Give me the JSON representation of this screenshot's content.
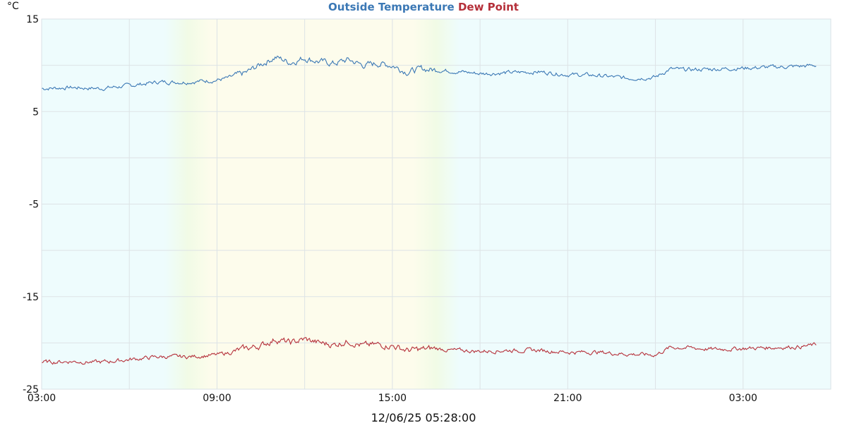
{
  "chart_data": {
    "type": "line",
    "title_parts": [
      {
        "text": "Outside Temperature",
        "color": "#3b78b5"
      },
      {
        "text": "Dew Point",
        "color": "#b5303a"
      }
    ],
    "unit_label": "°C",
    "footer": "12/06/25 05:28:00",
    "ylim": [
      -25,
      15
    ],
    "y_ticks": [
      {
        "value": 15,
        "label": "15"
      },
      {
        "value": 5,
        "label": "5"
      },
      {
        "value": -5,
        "label": "-5"
      },
      {
        "value": -15,
        "label": "-15"
      },
      {
        "value": -25,
        "label": "-25"
      }
    ],
    "y_grid_values": [
      15,
      10,
      5,
      0,
      -5,
      -10,
      -15,
      -20,
      -25
    ],
    "xlim": [
      0,
      27
    ],
    "x_ticks": [
      {
        "value": 0,
        "label": "03:00"
      },
      {
        "value": 6,
        "label": "09:00"
      },
      {
        "value": 12,
        "label": "15:00"
      },
      {
        "value": 18,
        "label": "21:00"
      },
      {
        "value": 24,
        "label": "03:00"
      }
    ],
    "x_grid_values": [
      0,
      3,
      6,
      9,
      12,
      15,
      18,
      21,
      24,
      27
    ],
    "daylight_band": {
      "start": 5.0,
      "end": 13.5,
      "day_color": "#fdfcec",
      "night_color": "#eefcfd"
    },
    "grid": true,
    "legend": "top-center",
    "series": [
      {
        "name": "Outside Temperature",
        "color": "#3b78b5",
        "x": [
          0,
          1,
          2,
          3,
          4,
          5,
          6,
          6.5,
          7,
          7.5,
          8,
          8.5,
          9,
          9.5,
          10,
          10.5,
          11,
          11.5,
          12,
          12.5,
          13,
          13.5,
          14,
          15,
          16,
          17,
          18,
          19,
          20,
          21,
          21.5,
          22,
          23,
          24,
          25,
          26,
          26.5
        ],
        "y": [
          7.5,
          7.6,
          7.5,
          7.8,
          8.2,
          8.2,
          8.4,
          8.7,
          9.2,
          10.1,
          10.9,
          10.3,
          10.8,
          10.4,
          10.2,
          10.6,
          10.0,
          10.2,
          10.0,
          9.3,
          9.6,
          9.5,
          9.4,
          9.1,
          9.2,
          9.3,
          9.0,
          8.9,
          8.6,
          8.7,
          9.6,
          9.5,
          9.6,
          9.7,
          9.8,
          9.9,
          10.0
        ]
      },
      {
        "name": "Dew Point",
        "color": "#b5303a",
        "x": [
          0,
          1,
          2,
          3,
          4,
          5,
          6,
          6.5,
          7,
          7.5,
          8,
          8.5,
          9,
          9.5,
          10,
          10.5,
          11,
          11.5,
          12,
          12.5,
          13,
          13.5,
          14,
          15,
          16,
          17,
          18,
          19,
          20,
          21,
          21.5,
          22,
          23,
          24,
          25,
          26,
          26.5
        ],
        "y": [
          -22.1,
          -22.0,
          -22.1,
          -21.8,
          -21.5,
          -21.5,
          -21.3,
          -21.0,
          -20.6,
          -20.3,
          -19.6,
          -20.0,
          -19.6,
          -20.0,
          -20.2,
          -19.8,
          -20.3,
          -20.2,
          -20.3,
          -20.8,
          -20.7,
          -20.6,
          -20.8,
          -20.9,
          -20.8,
          -20.8,
          -21.0,
          -21.0,
          -21.2,
          -21.3,
          -20.5,
          -20.5,
          -20.7,
          -20.6,
          -20.5,
          -20.4,
          -20.2
        ]
      }
    ]
  }
}
